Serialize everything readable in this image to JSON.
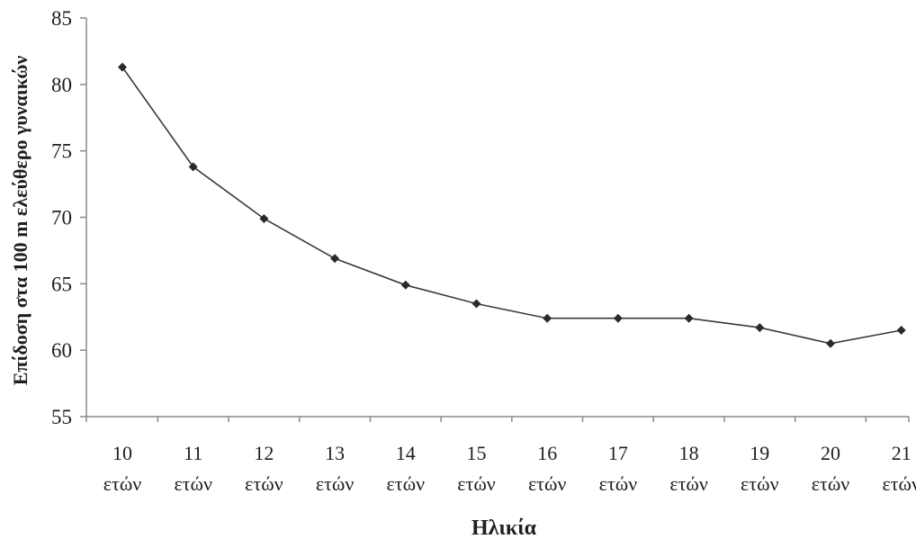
{
  "chart_data": {
    "type": "line",
    "title": "",
    "xlabel": "Ηλικία",
    "ylabel": "Επίδοση στα 100 m ελεύθερο γυναικών",
    "categories": [
      [
        "10",
        "ετών"
      ],
      [
        "11",
        "ετών"
      ],
      [
        "12",
        "ετών"
      ],
      [
        "13",
        "ετών"
      ],
      [
        "14",
        "ετών"
      ],
      [
        "15",
        "ετών"
      ],
      [
        "16",
        "ετών"
      ],
      [
        "17",
        "ετών"
      ],
      [
        "18",
        "ετών"
      ],
      [
        "19",
        "ετών"
      ],
      [
        "20",
        "ετών"
      ],
      [
        "21",
        "ετών"
      ]
    ],
    "series": [
      {
        "values": [
          81.3,
          73.8,
          69.9,
          66.9,
          64.9,
          63.5,
          62.4,
          62.4,
          62.4,
          61.7,
          60.5,
          61.5
        ]
      }
    ],
    "ylim": [
      55,
      85
    ],
    "yticks": [
      55,
      60,
      65,
      70,
      75,
      80,
      85
    ],
    "grid": false,
    "legend": "none",
    "colors": {
      "line": "#3a3a3a",
      "marker": "#2a2a2a",
      "axis": "#8a8a8a"
    }
  }
}
